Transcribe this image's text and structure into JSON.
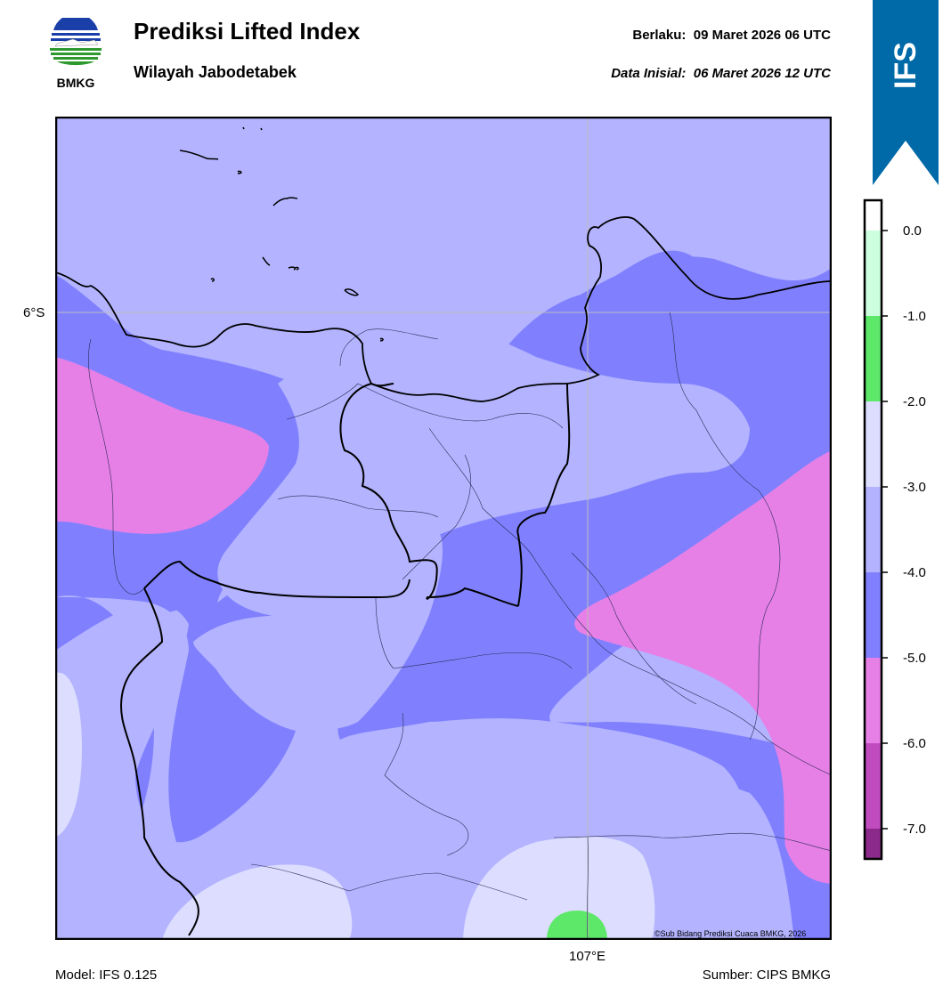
{
  "header": {
    "logo_text": "BMKG",
    "title": "Prediksi Lifted Index",
    "subtitle": "Wilayah Jabodetabek",
    "valid_label": "Berlaku:",
    "valid_value": "09 Maret 2026 06 UTC",
    "init_label": "Data Inisial:",
    "init_value": "06 Maret 2026 12 UTC",
    "ribbon_text": "IFS"
  },
  "map": {
    "lat_label": "6°S",
    "lon_label": "107°E",
    "credit": "©Sub Bidang Prediksi Cuaca BMKG, 2026"
  },
  "colorbar": {
    "ticks": [
      "0.0",
      "-1.0",
      "-2.0",
      "-3.0",
      "-4.0",
      "-5.0",
      "-6.0",
      "-7.0"
    ],
    "bands": [
      {
        "range": "0 to -1",
        "color": "#ccffdd"
      },
      {
        "range": "-1 to -2",
        "color": "#5ee86a"
      },
      {
        "range": "-2 to -3",
        "color": "#ddddff"
      },
      {
        "range": "-3 to -4",
        "color": "#b3b3ff"
      },
      {
        "range": "-4 to -5",
        "color": "#8080ff"
      },
      {
        "range": "-5 to -6",
        "color": "#e680e6"
      },
      {
        "range": "-6 to -7",
        "color": "#c04cc0"
      },
      {
        "range": "< -7",
        "color": "#8b2a8b"
      }
    ]
  },
  "footer": {
    "model": "Model: IFS 0.125",
    "source": "Sumber: CIPS BMKG"
  },
  "colors": {
    "brand_blue": "#006aa8",
    "li_neg3_neg4": "#b3b3ff",
    "li_neg4_neg5": "#8080ff",
    "li_neg5_neg6": "#e680e6",
    "li_neg2_neg3": "#ddddff",
    "li_neg1_neg2": "#5ee86a"
  }
}
